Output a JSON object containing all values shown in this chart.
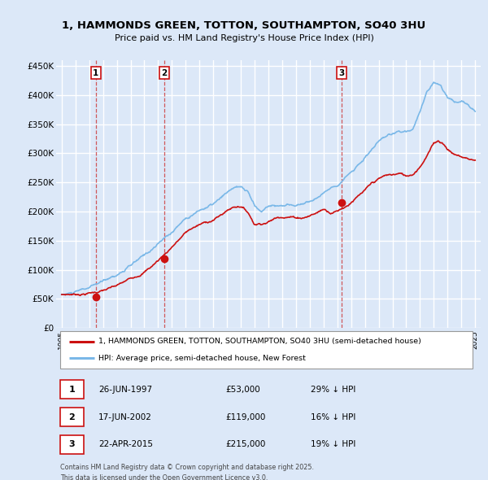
{
  "title": "1, HAMMONDS GREEN, TOTTON, SOUTHAMPTON, SO40 3HU",
  "subtitle": "Price paid vs. HM Land Registry's House Price Index (HPI)",
  "xlim": [
    1994.6,
    2025.4
  ],
  "ylim": [
    0,
    460000
  ],
  "yticks": [
    0,
    50000,
    100000,
    150000,
    200000,
    250000,
    300000,
    350000,
    400000,
    450000
  ],
  "ytick_labels": [
    "£0",
    "£50K",
    "£100K",
    "£150K",
    "£200K",
    "£250K",
    "£300K",
    "£350K",
    "£400K",
    "£450K"
  ],
  "xtick_years": [
    1995,
    1996,
    1997,
    1998,
    1999,
    2000,
    2001,
    2002,
    2003,
    2004,
    2005,
    2006,
    2007,
    2008,
    2009,
    2010,
    2011,
    2012,
    2013,
    2014,
    2015,
    2016,
    2017,
    2018,
    2019,
    2020,
    2021,
    2022,
    2023,
    2024,
    2025
  ],
  "sale_points": [
    {
      "num": 1,
      "year": 1997.48,
      "price": 53000,
      "label": "26-JUN-1997",
      "amount": "£53,000",
      "pct": "29% ↓ HPI"
    },
    {
      "num": 2,
      "year": 2002.46,
      "price": 119000,
      "label": "17-JUN-2002",
      "amount": "£119,000",
      "pct": "16% ↓ HPI"
    },
    {
      "num": 3,
      "year": 2015.31,
      "price": 215000,
      "label": "22-APR-2015",
      "amount": "£215,000",
      "pct": "19% ↓ HPI"
    }
  ],
  "hpi_line_color": "#7ab8e8",
  "sale_line_color": "#cc1111",
  "background_color": "#dce8f8",
  "plot_bg_color": "#dce8f8",
  "grid_color": "#ffffff",
  "legend_label_red": "1, HAMMONDS GREEN, TOTTON, SOUTHAMPTON, SO40 3HU (semi-detached house)",
  "legend_label_blue": "HPI: Average price, semi-detached house, New Forest",
  "footnote": "Contains HM Land Registry data © Crown copyright and database right 2025.\nThis data is licensed under the Open Government Licence v3.0."
}
